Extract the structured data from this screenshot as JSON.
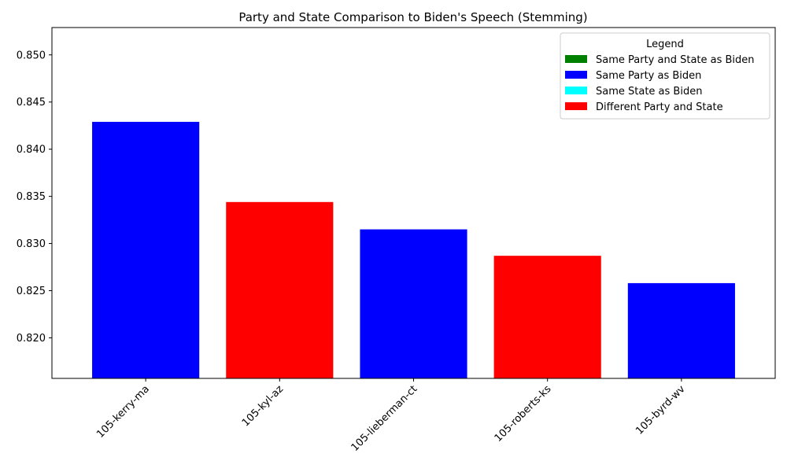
{
  "chart_data": {
    "type": "bar",
    "title": "Party and State Comparison to Biden's Speech (Stemming)",
    "xlabel": "",
    "ylabel": "",
    "categories": [
      "105-kerry-ma",
      "105-kyl-az",
      "105-lieberman-ct",
      "105-roberts-ks",
      "105-byrd-wv"
    ],
    "values": [
      0.8429,
      0.8344,
      0.8315,
      0.8287,
      0.8258
    ],
    "bar_groups": [
      "Same Party as Biden",
      "Different Party and State",
      "Same Party as Biden",
      "Different Party and State",
      "Same Party as Biden"
    ],
    "ylim": [
      0.8157,
      0.8529
    ],
    "yticks": [
      0.82,
      0.825,
      0.83,
      0.835,
      0.84,
      0.845,
      0.85
    ],
    "ytick_labels": [
      "0.820",
      "0.825",
      "0.830",
      "0.835",
      "0.840",
      "0.845",
      "0.850"
    ],
    "grid": false,
    "legend": {
      "title": "Legend",
      "placement": "top-right",
      "entries": [
        {
          "label": "Same Party and State as Biden",
          "color": "#008000"
        },
        {
          "label": "Same Party as Biden",
          "color": "#0000ff"
        },
        {
          "label": "Same State as Biden",
          "color": "#00ffff"
        },
        {
          "label": "Different Party and State",
          "color": "#ff0000"
        }
      ]
    }
  }
}
